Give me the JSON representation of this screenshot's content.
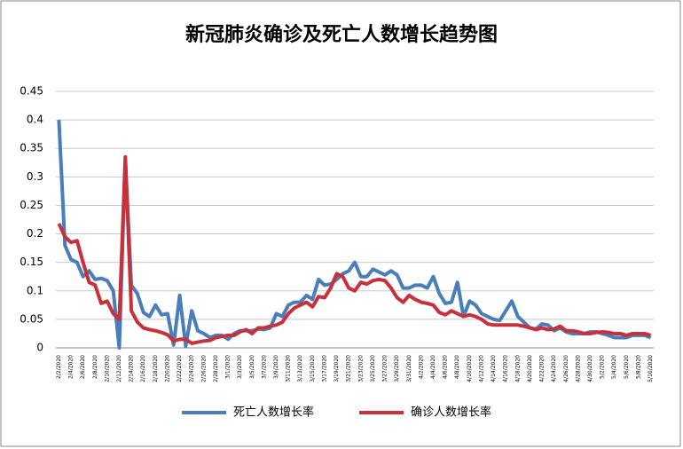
{
  "chart_data": {
    "type": "line",
    "title": "新冠肺炎确诊及死亡人数增长趋势图",
    "categories": [
      "2/2/2020",
      null,
      "2/4/2020",
      null,
      "2/6/2020",
      null,
      "2/8/2020",
      null,
      "2/10/2020",
      null,
      "2/12/2020",
      null,
      "2/14/2020",
      null,
      "2/16/2020",
      null,
      "2/18/2020",
      null,
      "2/20/2020",
      null,
      "2/22/2020",
      null,
      "2/24/2020",
      null,
      "2/26/2020",
      null,
      "2/28/2020",
      null,
      "3/1/2020",
      null,
      "3/3/2020",
      null,
      "3/5/2020",
      null,
      "3/7/2020",
      null,
      "3/9/2020",
      null,
      "3/11/2020",
      null,
      "3/13/2020",
      null,
      "3/15/2020",
      null,
      "3/17/2020",
      null,
      "3/19/2020",
      null,
      "3/21/2020",
      null,
      "3/23/2020",
      null,
      "3/25/2020",
      null,
      "3/27/2020",
      null,
      "3/29/2020",
      null,
      "3/31/2020",
      null,
      "4/2/2020",
      null,
      "4/4/2020",
      null,
      "4/6/2020",
      null,
      "4/8/2020",
      null,
      "4/10/2020",
      null,
      "4/12/2020",
      null,
      "4/14/2020",
      null,
      "4/16/2020",
      null,
      "4/18/2020",
      null,
      "4/20/2020",
      null,
      "4/22/2020",
      null,
      "4/24/2020",
      null,
      "4/26/2020",
      null,
      "4/28/2020",
      null,
      "4/30/2020",
      null,
      "5/2/2020",
      null,
      "5/4/2020",
      null,
      "5/6/2020",
      null,
      "5/8/2020",
      null,
      "5/10/2020"
    ],
    "series": [
      {
        "name": "死亡人数增长率",
        "color": "#4A7EBB",
        "values": [
          0.4,
          0.18,
          0.155,
          0.15,
          0.125,
          0.135,
          0.12,
          0.122,
          0.118,
          0.1,
          0.0,
          0.33,
          0.11,
          0.095,
          0.062,
          0.055,
          0.075,
          0.058,
          0.06,
          0.005,
          0.092,
          0.003,
          0.065,
          0.03,
          0.025,
          0.018,
          0.022,
          0.022,
          0.015,
          0.025,
          0.03,
          0.03,
          0.03,
          0.033,
          0.032,
          0.035,
          0.06,
          0.055,
          0.075,
          0.08,
          0.08,
          0.092,
          0.085,
          0.12,
          0.11,
          0.112,
          0.12,
          0.13,
          0.135,
          0.15,
          0.125,
          0.125,
          0.138,
          0.133,
          0.128,
          0.135,
          0.128,
          0.105,
          0.105,
          0.11,
          0.11,
          0.105,
          0.125,
          0.095,
          0.078,
          0.08,
          0.115,
          0.055,
          0.082,
          0.075,
          0.06,
          0.055,
          0.05,
          0.048,
          0.065,
          0.082,
          0.055,
          0.045,
          0.035,
          0.033,
          0.042,
          0.04,
          0.03,
          0.035,
          0.028,
          0.025,
          0.025,
          0.025,
          0.028,
          0.028,
          0.025,
          0.022,
          0.018,
          0.018,
          0.018,
          0.022,
          0.022,
          0.022,
          0.018
        ]
      },
      {
        "name": "确诊人数增长率",
        "color": "#C8303A",
        "values": [
          0.218,
          0.195,
          0.185,
          0.188,
          0.15,
          0.115,
          0.11,
          0.078,
          0.082,
          0.06,
          0.05,
          0.335,
          0.065,
          0.045,
          0.035,
          0.032,
          0.03,
          0.027,
          0.023,
          0.012,
          0.015,
          0.015,
          0.008,
          0.01,
          0.012,
          0.013,
          0.018,
          0.02,
          0.022,
          0.022,
          0.028,
          0.032,
          0.025,
          0.035,
          0.035,
          0.038,
          0.04,
          0.045,
          0.06,
          0.07,
          0.075,
          0.08,
          0.072,
          0.09,
          0.088,
          0.105,
          0.13,
          0.125,
          0.105,
          0.1,
          0.115,
          0.112,
          0.118,
          0.12,
          0.118,
          0.105,
          0.088,
          0.08,
          0.092,
          0.085,
          0.08,
          0.078,
          0.075,
          0.062,
          0.058,
          0.065,
          0.06,
          0.055,
          0.058,
          0.055,
          0.05,
          0.042,
          0.04,
          0.04,
          0.04,
          0.04,
          0.04,
          0.038,
          0.035,
          0.032,
          0.035,
          0.032,
          0.033,
          0.038,
          0.03,
          0.03,
          0.028,
          0.025,
          0.025,
          0.027,
          0.028,
          0.027,
          0.025,
          0.025,
          0.022,
          0.025,
          0.025,
          0.025,
          0.022
        ]
      }
    ],
    "ylim": [
      0,
      0.45
    ],
    "yticks": [
      0,
      0.05,
      0.1,
      0.15,
      0.2,
      0.25,
      0.3,
      0.35,
      0.4,
      0.45
    ],
    "grid": true,
    "legend": "bottom"
  }
}
